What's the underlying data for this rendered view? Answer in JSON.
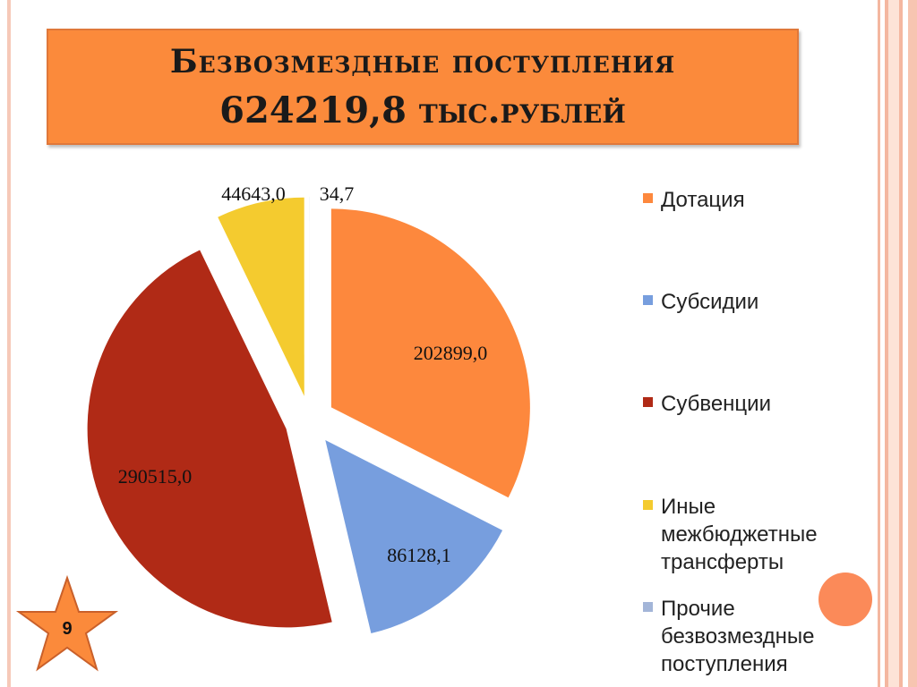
{
  "title": {
    "line1": "Безвозмездные  поступления",
    "line2": "624219,8 тыс.рублей"
  },
  "colors": {
    "title_bg": "#fb8a3b",
    "accent": "#fb8a59"
  },
  "chart_data": {
    "type": "pie",
    "title": "Безвозмездные  поступления 624219,8 тыс.рублей",
    "categories": [
      "Дотация",
      "Субсидии",
      "Субвенции",
      "Иные межбюджетные трансферты",
      "Прочие безвозмездные поступления"
    ],
    "values": [
      202899.0,
      86128.1,
      290515.0,
      44643.0,
      34.7
    ],
    "value_labels": [
      "202899,0",
      "86128,1",
      "290515,0",
      "44643,0",
      "34,7"
    ],
    "colors": [
      "#fd883d",
      "#779ede",
      "#b02a16",
      "#f4cb2f",
      "#a3b5d8"
    ],
    "exploded": true,
    "legend_position": "right",
    "legend": [
      {
        "lines": [
          "Дотация"
        ]
      },
      {
        "lines": [
          "Субсидии"
        ]
      },
      {
        "lines": [
          "Субвенции"
        ]
      },
      {
        "lines": [
          "Иные",
          "межбюджетные",
          "трансферты"
        ]
      },
      {
        "lines": [
          "Прочие",
          "безвозмездные",
          "поступления"
        ]
      }
    ]
  },
  "slide_number": "9",
  "icons": {
    "slide_badge": "star-icon",
    "decoration": "circle-decoration"
  }
}
